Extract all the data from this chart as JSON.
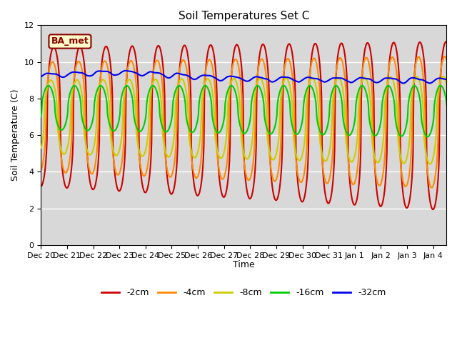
{
  "title": "Soil Temperatures Set C",
  "xlabel": "Time",
  "ylabel": "Soil Temperature (C)",
  "ylim": [
    0,
    12
  ],
  "bg_color": "#d8d8d8",
  "annotation_text": "BA_met",
  "annotation_bg": "#ffffcc",
  "annotation_border": "#8B0000",
  "legend_labels": [
    "-2cm",
    "-4cm",
    "-8cm",
    "-16cm",
    "-32cm"
  ],
  "line_colors": [
    "#cc0000",
    "#ff8800",
    "#cccc00",
    "#00cc00",
    "#0000ee"
  ],
  "tick_labels": [
    "Dec 20",
    "Dec 21",
    "Dec 22",
    "Dec 23",
    "Dec 24",
    "Dec 25",
    "Dec 26",
    "Dec 27",
    "Dec 28",
    "Dec 29",
    "Dec 30",
    "Dec 31",
    "Jan 1",
    "Jan 2",
    "Jan 3",
    "Jan 4"
  ],
  "n_days": 15.5
}
